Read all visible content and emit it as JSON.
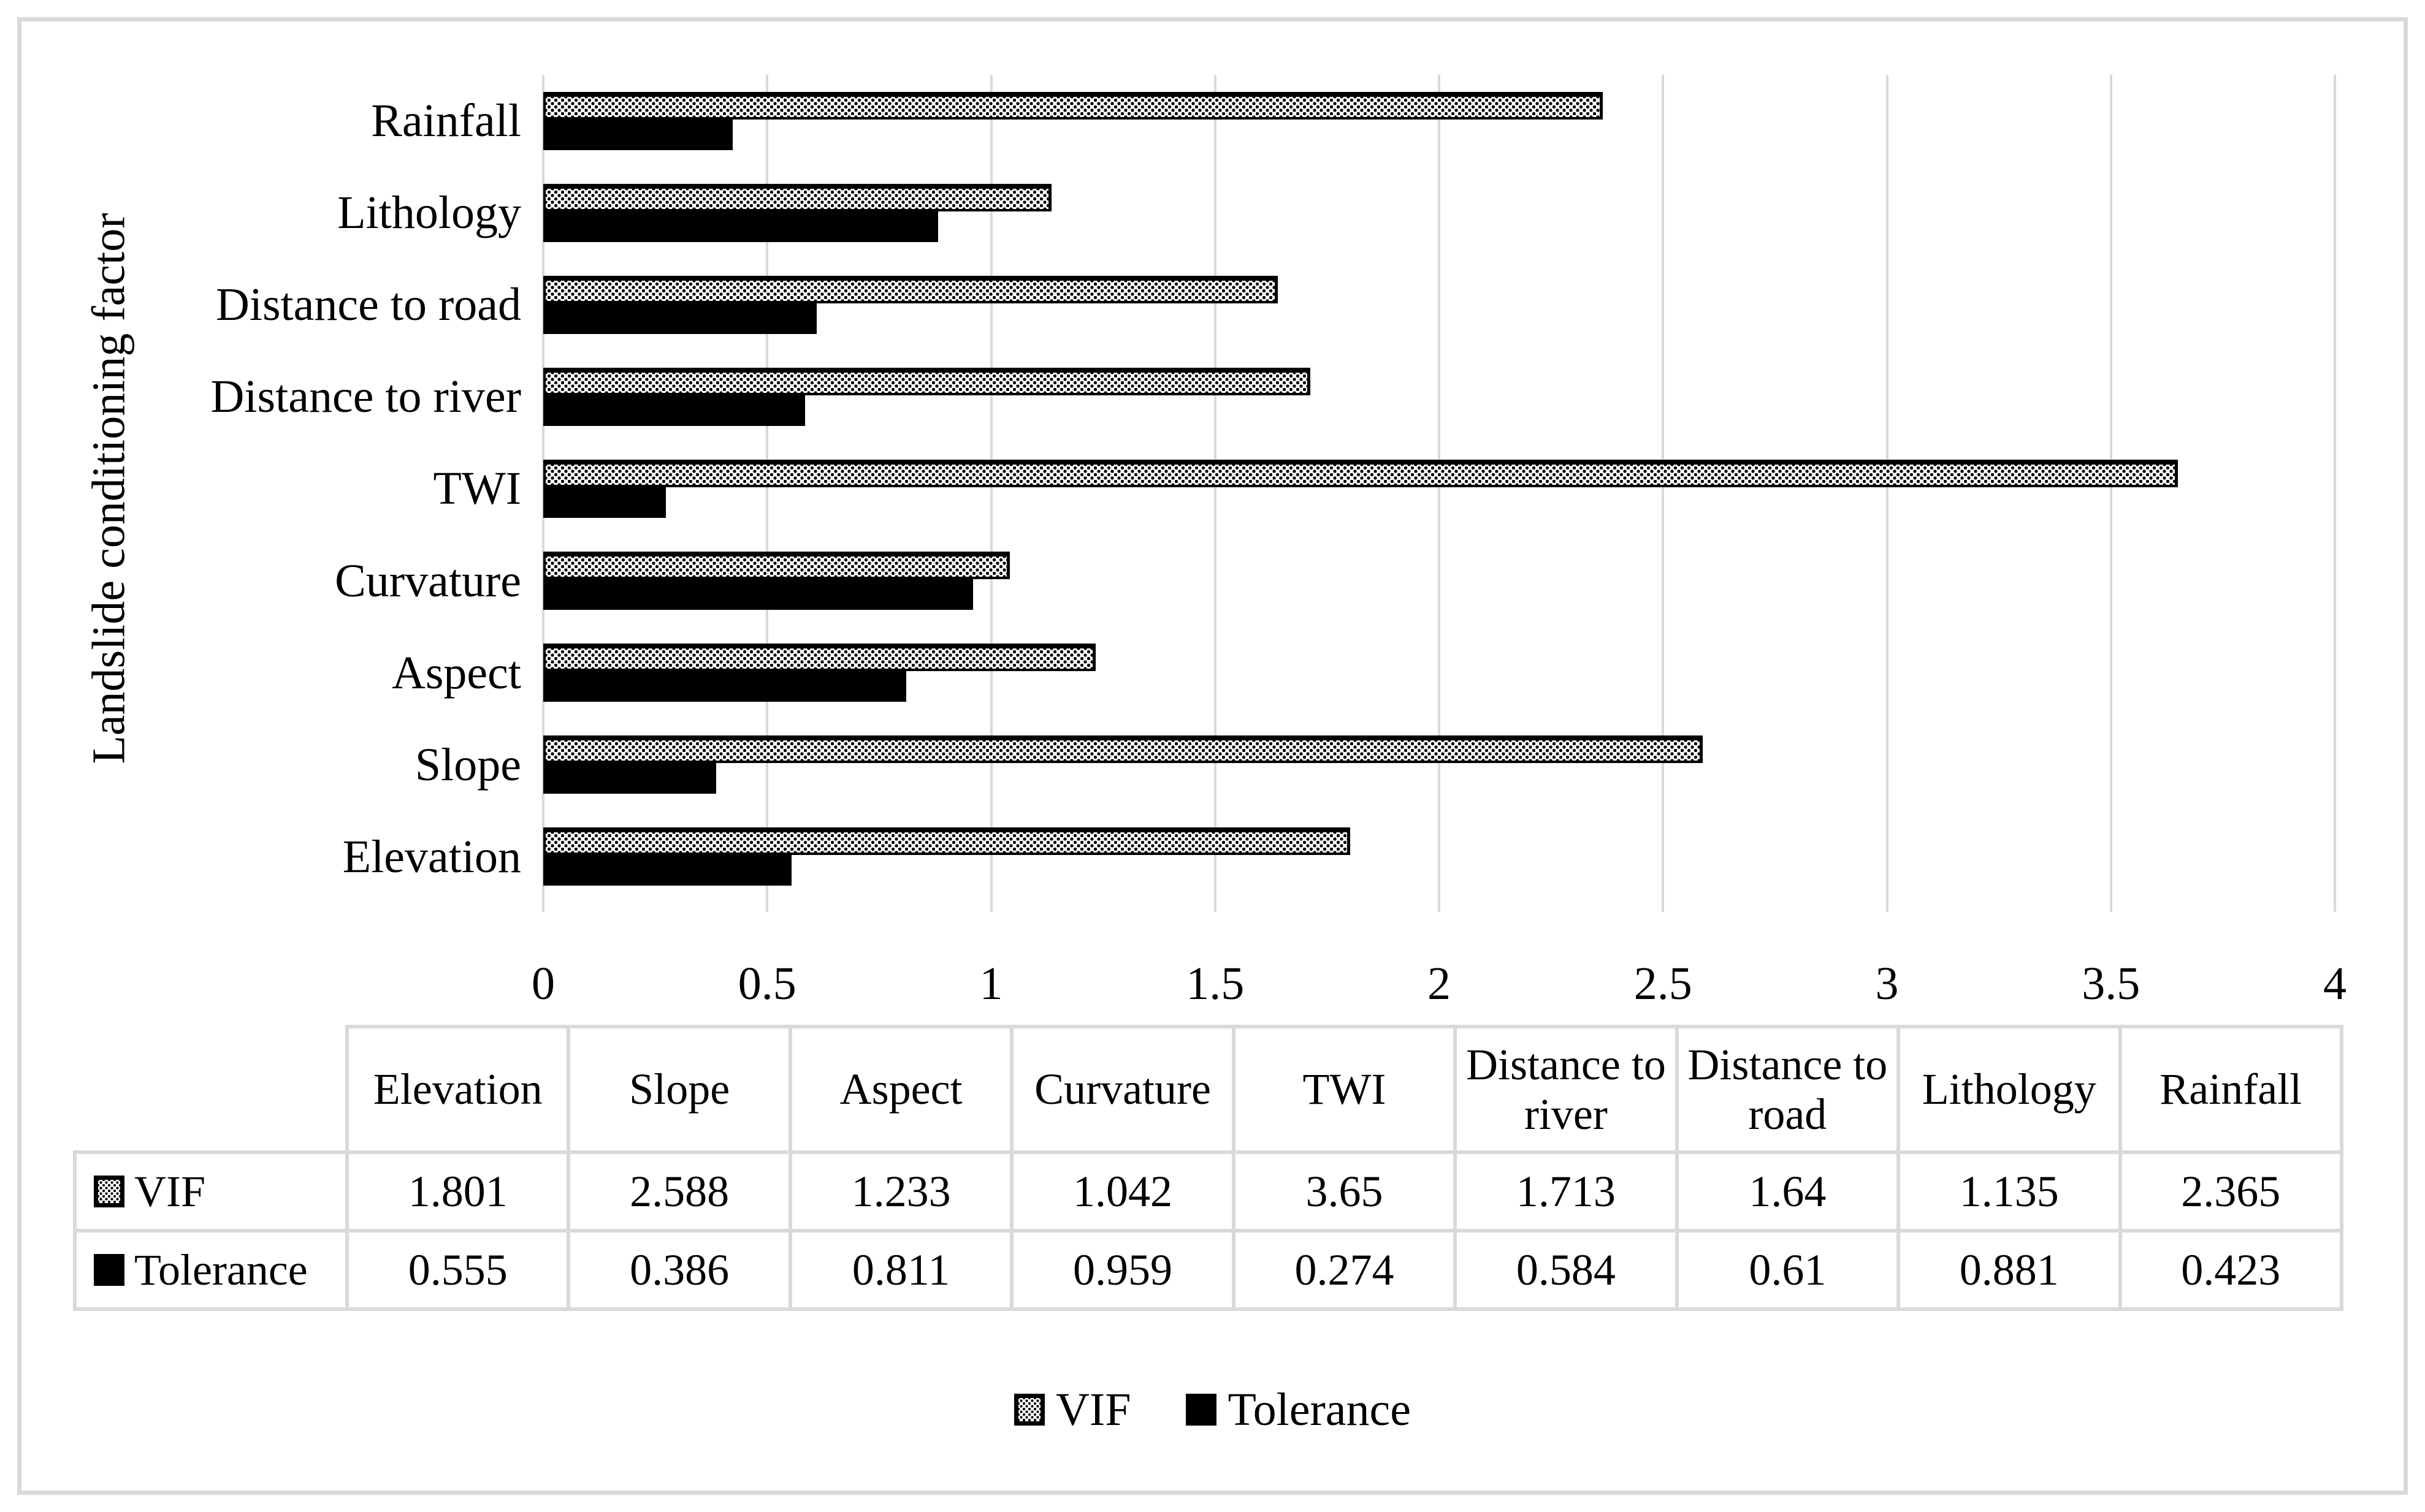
{
  "chart_data": {
    "type": "bar",
    "orientation": "horizontal",
    "title": "",
    "xlabel": "",
    "ylabel": "Landslide conditioning factor",
    "xlim": [
      0,
      4
    ],
    "x_ticks": [
      "0",
      "0.5",
      "1",
      "1.5",
      "2",
      "2.5",
      "3",
      "3.5",
      "4"
    ],
    "grid": "vertical-light-gray-every-0.5",
    "legend_position": "bottom-center",
    "categories": [
      "Rainfall",
      "Lithology",
      "Distance to road",
      "Distance to river",
      "TWI",
      "Curvature",
      "Aspect",
      "Slope",
      "Elevation"
    ],
    "series": [
      {
        "name": "VIF",
        "style": "dotted-pattern-black-outline",
        "values": [
          2.365,
          1.135,
          1.64,
          1.713,
          3.65,
          1.042,
          1.233,
          2.588,
          1.801
        ]
      },
      {
        "name": "Tolerance",
        "style": "solid-black",
        "values": [
          0.423,
          0.881,
          0.61,
          0.584,
          0.274,
          0.959,
          0.811,
          0.386,
          0.555
        ]
      }
    ]
  },
  "table": {
    "columns": [
      "Elevation",
      "Slope",
      "Aspect",
      "Curvature",
      "TWI",
      "Distance to river",
      "Distance to road",
      "Lithology",
      "Rainfall"
    ],
    "rows": [
      {
        "label": "VIF",
        "swatch": "vif",
        "values": [
          "1.801",
          "2.588",
          "1.233",
          "1.042",
          "3.65",
          "1.713",
          "1.64",
          "1.135",
          "2.365"
        ]
      },
      {
        "label": "Tolerance",
        "swatch": "tol",
        "values": [
          "0.555",
          "0.386",
          "0.811",
          "0.959",
          "0.274",
          "0.584",
          "0.61",
          "0.881",
          "0.423"
        ]
      }
    ]
  },
  "legend": {
    "items": [
      {
        "label": "VIF",
        "swatch": "vif"
      },
      {
        "label": "Tolerance",
        "swatch": "tol"
      }
    ]
  },
  "colors": {
    "bar_black": "#000000",
    "grid_gray": "#d9d9d9",
    "background": "#ffffff",
    "text": "#000000"
  }
}
